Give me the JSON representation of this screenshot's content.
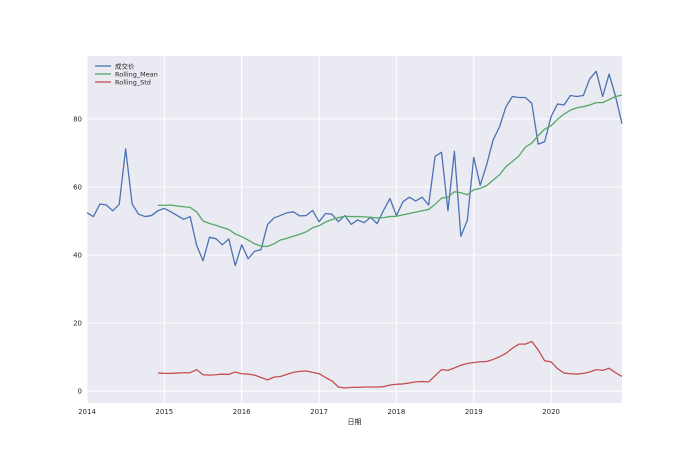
{
  "chart_data": {
    "type": "line",
    "title": "",
    "xlabel": "日期",
    "ylabel": "",
    "xlim": [
      "2014-01",
      "2020-12"
    ],
    "ylim": [
      -3.5,
      98.5
    ],
    "grid": true,
    "legend_position": "top-left",
    "x_tick_labels": [
      "2014",
      "2015",
      "2016",
      "2017",
      "2018",
      "2019",
      "2020"
    ],
    "y_tick_labels": [
      "0",
      "20",
      "40",
      "60",
      "80"
    ],
    "y_ticks": [
      0,
      20,
      40,
      60,
      80
    ],
    "x_ticks": [
      "2014-01",
      "2015-01",
      "2016-01",
      "2017-01",
      "2018-01",
      "2019-01",
      "2020-01"
    ],
    "series": [
      {
        "name": "成交价",
        "color": "#4c72b0",
        "points": [
          [
            "2014-01",
            52.4
          ],
          [
            "2014-02",
            51.3
          ],
          [
            "2014-03",
            55.0
          ],
          [
            "2014-04",
            54.7
          ],
          [
            "2014-05",
            53.0
          ],
          [
            "2014-06",
            54.9
          ],
          [
            "2014-07",
            71.2
          ],
          [
            "2014-08",
            55.0
          ],
          [
            "2014-09",
            52.0
          ],
          [
            "2014-10",
            51.3
          ],
          [
            "2014-11",
            51.6
          ],
          [
            "2014-12",
            53.0
          ],
          [
            "2015-01",
            53.7
          ],
          [
            "2015-02",
            52.7
          ],
          [
            "2015-03",
            51.6
          ],
          [
            "2015-04",
            50.5
          ],
          [
            "2015-05",
            51.3
          ],
          [
            "2015-06",
            42.9
          ],
          [
            "2015-07",
            38.3
          ],
          [
            "2015-08",
            45.2
          ],
          [
            "2015-09",
            44.8
          ],
          [
            "2015-10",
            43.0
          ],
          [
            "2015-11",
            44.7
          ],
          [
            "2015-12",
            36.9
          ],
          [
            "2016-01",
            43.0
          ],
          [
            "2016-02",
            38.9
          ],
          [
            "2016-03",
            41.1
          ],
          [
            "2016-04",
            41.6
          ],
          [
            "2016-05",
            48.9
          ],
          [
            "2016-06",
            50.9
          ],
          [
            "2016-07",
            51.6
          ],
          [
            "2016-08",
            52.4
          ],
          [
            "2016-09",
            52.7
          ],
          [
            "2016-10",
            51.5
          ],
          [
            "2016-11",
            51.6
          ],
          [
            "2016-12",
            53.1
          ],
          [
            "2017-01",
            49.8
          ],
          [
            "2017-02",
            52.2
          ],
          [
            "2017-03",
            52.0
          ],
          [
            "2017-04",
            49.8
          ],
          [
            "2017-05",
            51.6
          ],
          [
            "2017-06",
            49.0
          ],
          [
            "2017-07",
            50.3
          ],
          [
            "2017-08",
            49.5
          ],
          [
            "2017-09",
            51.1
          ],
          [
            "2017-10",
            49.2
          ],
          [
            "2017-11",
            53.1
          ],
          [
            "2017-12",
            56.6
          ],
          [
            "2018-01",
            51.6
          ],
          [
            "2018-02",
            55.6
          ],
          [
            "2018-03",
            57.0
          ],
          [
            "2018-04",
            55.9
          ],
          [
            "2018-05",
            57.0
          ],
          [
            "2018-06",
            54.7
          ],
          [
            "2018-07",
            69.0
          ],
          [
            "2018-08",
            70.2
          ],
          [
            "2018-09",
            53.0
          ],
          [
            "2018-10",
            70.5
          ],
          [
            "2018-11",
            45.5
          ],
          [
            "2018-12",
            50.2
          ],
          [
            "2019-01",
            68.7
          ],
          [
            "2019-02",
            60.5
          ],
          [
            "2019-03",
            66.5
          ],
          [
            "2019-04",
            73.8
          ],
          [
            "2019-05",
            77.7
          ],
          [
            "2019-06",
            83.6
          ],
          [
            "2019-07",
            86.6
          ],
          [
            "2019-08",
            86.3
          ],
          [
            "2019-09",
            86.3
          ],
          [
            "2019-10",
            84.6
          ],
          [
            "2019-11",
            72.6
          ],
          [
            "2019-12",
            73.3
          ],
          [
            "2020-01",
            80.7
          ],
          [
            "2020-02",
            84.4
          ],
          [
            "2020-03",
            84.1
          ],
          [
            "2020-04",
            86.9
          ],
          [
            "2020-05",
            86.6
          ],
          [
            "2020-06",
            86.9
          ],
          [
            "2020-07",
            91.8
          ],
          [
            "2020-08",
            94.0
          ],
          [
            "2020-09",
            86.6
          ],
          [
            "2020-10",
            93.2
          ],
          [
            "2020-11",
            86.6
          ],
          [
            "2020-12",
            78.6
          ]
        ]
      },
      {
        "name": "Rolling_Mean",
        "color": "#55a868",
        "points": [
          [
            "2014-12",
            54.6
          ],
          [
            "2015-01",
            54.6
          ],
          [
            "2015-02",
            54.7
          ],
          [
            "2015-03",
            54.4
          ],
          [
            "2015-04",
            54.2
          ],
          [
            "2015-05",
            54.0
          ],
          [
            "2015-06",
            52.7
          ],
          [
            "2015-07",
            50.0
          ],
          [
            "2015-08",
            49.3
          ],
          [
            "2015-09",
            48.7
          ],
          [
            "2015-10",
            48.1
          ],
          [
            "2015-11",
            47.5
          ],
          [
            "2015-12",
            46.2
          ],
          [
            "2016-01",
            45.4
          ],
          [
            "2016-02",
            44.4
          ],
          [
            "2016-03",
            43.3
          ],
          [
            "2016-04",
            42.6
          ],
          [
            "2016-05",
            42.5
          ],
          [
            "2016-06",
            43.3
          ],
          [
            "2016-07",
            44.4
          ],
          [
            "2016-08",
            44.9
          ],
          [
            "2016-09",
            45.5
          ],
          [
            "2016-10",
            46.1
          ],
          [
            "2016-11",
            46.8
          ],
          [
            "2016-12",
            48.0
          ],
          [
            "2017-01",
            48.6
          ],
          [
            "2017-02",
            49.7
          ],
          [
            "2017-03",
            50.4
          ],
          [
            "2017-04",
            51.0
          ],
          [
            "2017-05",
            51.4
          ],
          [
            "2017-06",
            51.3
          ],
          [
            "2017-07",
            51.3
          ],
          [
            "2017-08",
            51.2
          ],
          [
            "2017-09",
            51.1
          ],
          [
            "2017-10",
            50.9
          ],
          [
            "2017-11",
            51.0
          ],
          [
            "2017-12",
            51.3
          ],
          [
            "2018-01",
            51.4
          ],
          [
            "2018-02",
            51.8
          ],
          [
            "2018-03",
            52.2
          ],
          [
            "2018-04",
            52.6
          ],
          [
            "2018-05",
            53.0
          ],
          [
            "2018-06",
            53.4
          ],
          [
            "2018-07",
            54.9
          ],
          [
            "2018-08",
            56.7
          ],
          [
            "2018-09",
            57.0
          ],
          [
            "2018-10",
            58.6
          ],
          [
            "2018-11",
            58.3
          ],
          [
            "2018-12",
            57.7
          ],
          [
            "2019-01",
            59.2
          ],
          [
            "2019-02",
            59.6
          ],
          [
            "2019-03",
            60.4
          ],
          [
            "2019-04",
            62.0
          ],
          [
            "2019-05",
            63.6
          ],
          [
            "2019-06",
            66.0
          ],
          [
            "2019-07",
            67.5
          ],
          [
            "2019-08",
            69.1
          ],
          [
            "2019-09",
            71.7
          ],
          [
            "2019-10",
            72.9
          ],
          [
            "2019-11",
            75.1
          ],
          [
            "2019-12",
            77.0
          ],
          [
            "2020-01",
            78.0
          ],
          [
            "2020-02",
            79.9
          ],
          [
            "2020-03",
            81.4
          ],
          [
            "2020-04",
            82.6
          ],
          [
            "2020-05",
            83.3
          ],
          [
            "2020-06",
            83.6
          ],
          [
            "2020-07",
            84.1
          ],
          [
            "2020-08",
            84.8
          ],
          [
            "2020-09",
            84.8
          ],
          [
            "2020-10",
            85.7
          ],
          [
            "2020-11",
            86.6
          ],
          [
            "2020-12",
            87.0
          ]
        ]
      },
      {
        "name": "Rolling_Std",
        "color": "#c44e52",
        "points": [
          [
            "2014-12",
            5.3
          ],
          [
            "2015-01",
            5.2
          ],
          [
            "2015-02",
            5.2
          ],
          [
            "2015-03",
            5.3
          ],
          [
            "2015-04",
            5.4
          ],
          [
            "2015-05",
            5.4
          ],
          [
            "2015-06",
            6.3
          ],
          [
            "2015-07",
            4.8
          ],
          [
            "2015-08",
            4.7
          ],
          [
            "2015-09",
            4.8
          ],
          [
            "2015-10",
            5.0
          ],
          [
            "2015-11",
            4.9
          ],
          [
            "2015-12",
            5.6
          ],
          [
            "2016-01",
            5.1
          ],
          [
            "2016-02",
            5.0
          ],
          [
            "2016-03",
            4.7
          ],
          [
            "2016-04",
            4.0
          ],
          [
            "2016-05",
            3.3
          ],
          [
            "2016-06",
            4.1
          ],
          [
            "2016-07",
            4.3
          ],
          [
            "2016-08",
            4.9
          ],
          [
            "2016-09",
            5.5
          ],
          [
            "2016-10",
            5.8
          ],
          [
            "2016-11",
            5.9
          ],
          [
            "2016-12",
            5.5
          ],
          [
            "2017-01",
            5.1
          ],
          [
            "2017-02",
            4.0
          ],
          [
            "2017-03",
            3.0
          ],
          [
            "2017-04",
            1.2
          ],
          [
            "2017-05",
            0.9
          ],
          [
            "2017-06",
            1.1
          ],
          [
            "2017-07",
            1.1
          ],
          [
            "2017-08",
            1.2
          ],
          [
            "2017-09",
            1.2
          ],
          [
            "2017-10",
            1.2
          ],
          [
            "2017-11",
            1.3
          ],
          [
            "2017-12",
            1.8
          ],
          [
            "2018-01",
            2.0
          ],
          [
            "2018-02",
            2.1
          ],
          [
            "2018-03",
            2.4
          ],
          [
            "2018-04",
            2.7
          ],
          [
            "2018-05",
            2.8
          ],
          [
            "2018-06",
            2.7
          ],
          [
            "2018-07",
            4.5
          ],
          [
            "2018-08",
            6.3
          ],
          [
            "2018-09",
            6.1
          ],
          [
            "2018-10",
            6.8
          ],
          [
            "2018-11",
            7.6
          ],
          [
            "2018-12",
            8.1
          ],
          [
            "2019-01",
            8.4
          ],
          [
            "2019-02",
            8.6
          ],
          [
            "2019-03",
            8.7
          ],
          [
            "2019-04",
            9.3
          ],
          [
            "2019-05",
            10.1
          ],
          [
            "2019-06",
            11.1
          ],
          [
            "2019-07",
            12.6
          ],
          [
            "2019-08",
            13.8
          ],
          [
            "2019-09",
            13.8
          ],
          [
            "2019-10",
            14.6
          ],
          [
            "2019-11",
            12.1
          ],
          [
            "2019-12",
            8.9
          ],
          [
            "2020-01",
            8.6
          ],
          [
            "2020-02",
            6.6
          ],
          [
            "2020-03",
            5.3
          ],
          [
            "2020-04",
            5.1
          ],
          [
            "2020-05",
            5.0
          ],
          [
            "2020-06",
            5.2
          ],
          [
            "2020-07",
            5.6
          ],
          [
            "2020-08",
            6.3
          ],
          [
            "2020-09",
            6.1
          ],
          [
            "2020-10",
            6.7
          ],
          [
            "2020-11",
            5.4
          ],
          [
            "2020-12",
            4.3
          ]
        ]
      }
    ]
  }
}
